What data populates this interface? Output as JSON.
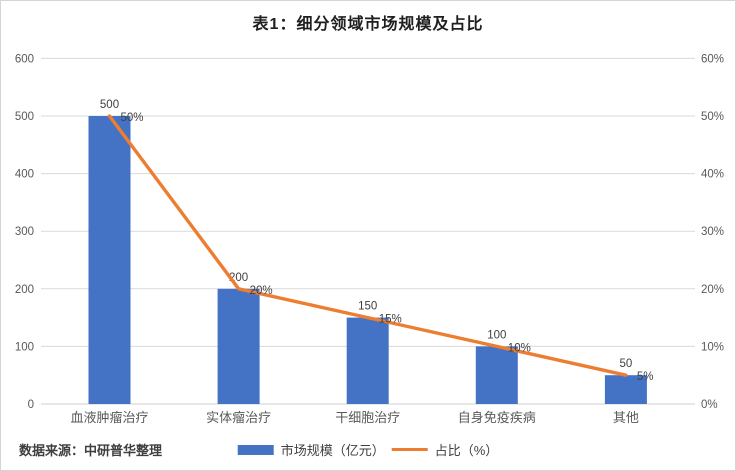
{
  "chart_data": {
    "type": "combo",
    "title": "表1：细分领域市场规模及占比",
    "categories": [
      "血液肿瘤治疗",
      "实体瘤治疗",
      "干细胞治疗",
      "自身免疫疾病",
      "其他"
    ],
    "series": [
      {
        "name": "市场规模（亿元）",
        "type": "bar",
        "axis": "left",
        "values": [
          500,
          200,
          150,
          100,
          50
        ],
        "data_labels": [
          "500",
          "200",
          "150",
          "100",
          "50"
        ],
        "color": "#4472C4"
      },
      {
        "name": "占比（%）",
        "type": "line",
        "axis": "right",
        "values": [
          50,
          20,
          15,
          10,
          5
        ],
        "data_labels": [
          "50%",
          "20%",
          "15%",
          "10%",
          "5%"
        ],
        "color": "#ED7D31"
      }
    ],
    "left_axis": {
      "min": 0,
      "max": 600,
      "step": 100,
      "ticks": [
        "0",
        "100",
        "200",
        "300",
        "400",
        "500",
        "600"
      ]
    },
    "right_axis": {
      "min": 0,
      "max": 60,
      "step": 10,
      "ticks": [
        "0%",
        "10%",
        "20%",
        "30%",
        "40%",
        "50%",
        "60%"
      ]
    },
    "grid": true,
    "legend_position": "bottom"
  },
  "source_note": "数据来源：中研普华整理",
  "colors": {
    "bar": "#4472C4",
    "line": "#ED7D31",
    "gridline": "#d9d9d9",
    "zero_line": "#cfcfcf",
    "axis_text": "#595959",
    "category_text": "#595959",
    "data_label_text": "#404040",
    "title_text": "#1f1f1f",
    "frame_border": "#d4d4d4",
    "background": "#ffffff"
  }
}
